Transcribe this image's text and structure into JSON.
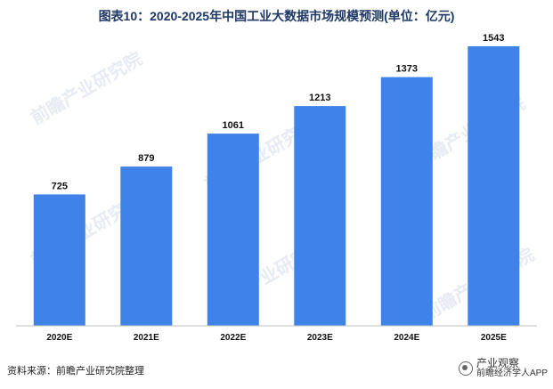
{
  "header": {
    "title": "图表10：2020-2025年中国工业大数据市场规模预测(单位：亿元)"
  },
  "footer": {
    "source": "资料来源：前瞻产业研究院整理",
    "brand_line1": "产业观察",
    "brand_line2": "前瞻经济学人APP"
  },
  "watermark": {
    "text": "前瞻产业研究院"
  },
  "colors": {
    "bar": "#3f83e8",
    "axis": "#bfbfbf"
  },
  "chart_data": {
    "type": "bar",
    "categories": [
      "2020E",
      "2021E",
      "2022E",
      "2023E",
      "2024E",
      "2025E"
    ],
    "values": [
      725,
      879,
      1061,
      1213,
      1373,
      1543
    ],
    "data_labels": [
      "725",
      "879",
      "1061",
      "1213",
      "1373",
      "1543"
    ],
    "title": "图表10：2020-2025年中国工业大数据市场规模预测(单位：亿元)",
    "xlabel": "",
    "ylabel": "",
    "ylim": [
      0,
      1700
    ],
    "grid": false,
    "legend": "none"
  }
}
